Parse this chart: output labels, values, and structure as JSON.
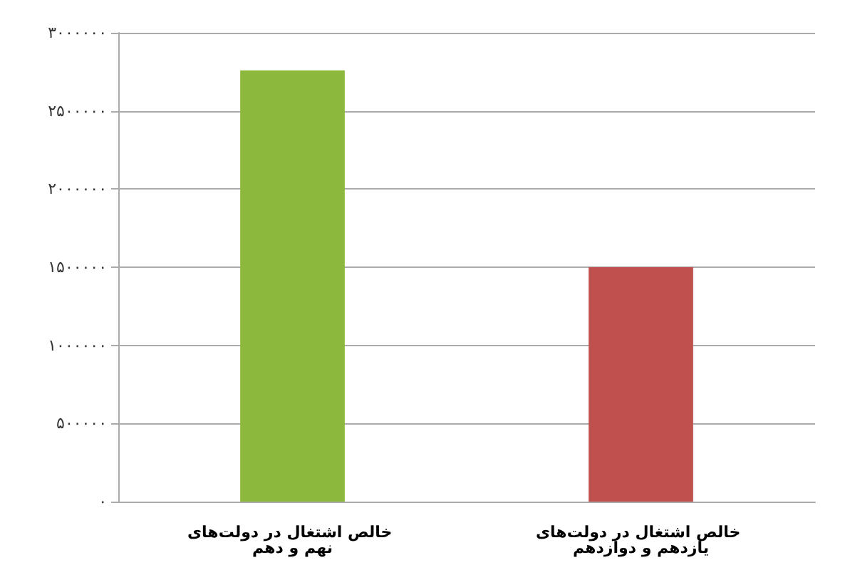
{
  "chart_data": {
    "type": "bar",
    "categories": [
      "خالص اشتغال در دولت‌های نهم و دهم",
      "خالص اشتغال در دولت‌های یازدهم و دوازدهم"
    ],
    "values": [
      2760000,
      1500000
    ],
    "colors": [
      "#8db83e",
      "#c0504d"
    ],
    "ylim": [
      0,
      3000000
    ],
    "yticks": [
      {
        "value": 0,
        "label": "۰"
      },
      {
        "value": 500000,
        "label": "۵۰۰۰۰۰"
      },
      {
        "value": 1000000,
        "label": "۱۰۰۰۰۰۰"
      },
      {
        "value": 1500000,
        "label": "۱۵۰۰۰۰۰"
      },
      {
        "value": 2000000,
        "label": "۲۰۰۰۰۰۰"
      },
      {
        "value": 2500000,
        "label": "۲۵۰۰۰۰۰"
      },
      {
        "value": 3000000,
        "label": "۳۰۰۰۰۰۰"
      }
    ],
    "grid": "y"
  }
}
